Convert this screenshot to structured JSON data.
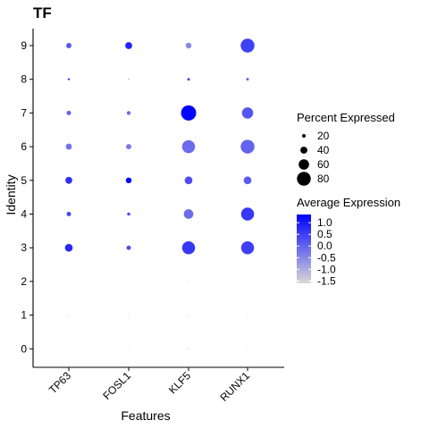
{
  "chart_data": {
    "type": "dotplot",
    "title": "TF",
    "xlabel": "Features",
    "ylabel": "Identity",
    "features": [
      "TP63",
      "FOSL1",
      "KLF5",
      "RUNX1"
    ],
    "identities": [
      "0",
      "1",
      "2",
      "3",
      "4",
      "5",
      "6",
      "7",
      "8",
      "9"
    ],
    "points": [
      {
        "identity": "9",
        "feature": "TP63",
        "pct": 30,
        "avg": 0.2
      },
      {
        "identity": "9",
        "feature": "FOSL1",
        "pct": 40,
        "avg": 0.9
      },
      {
        "identity": "9",
        "feature": "KLF5",
        "pct": 33,
        "avg": -0.5
      },
      {
        "identity": "9",
        "feature": "RUNX1",
        "pct": 80,
        "avg": 0.5
      },
      {
        "identity": "8",
        "feature": "TP63",
        "pct": 10,
        "avg": 1.2
      },
      {
        "identity": "8",
        "feature": "FOSL1",
        "pct": 5,
        "avg": 0.2
      },
      {
        "identity": "8",
        "feature": "KLF5",
        "pct": 15,
        "avg": 0.4
      },
      {
        "identity": "8",
        "feature": "RUNX1",
        "pct": 15,
        "avg": 0.1
      },
      {
        "identity": "7",
        "feature": "TP63",
        "pct": 25,
        "avg": 0.0
      },
      {
        "identity": "7",
        "feature": "FOSL1",
        "pct": 22,
        "avg": -0.1
      },
      {
        "identity": "7",
        "feature": "KLF5",
        "pct": 88,
        "avg": 1.3
      },
      {
        "identity": "7",
        "feature": "RUNX1",
        "pct": 65,
        "avg": 0.2
      },
      {
        "identity": "6",
        "feature": "TP63",
        "pct": 35,
        "avg": -0.2
      },
      {
        "identity": "6",
        "feature": "FOSL1",
        "pct": 30,
        "avg": -0.3
      },
      {
        "identity": "6",
        "feature": "KLF5",
        "pct": 75,
        "avg": -0.1
      },
      {
        "identity": "6",
        "feature": "RUNX1",
        "pct": 80,
        "avg": 0.0
      },
      {
        "identity": "5",
        "feature": "TP63",
        "pct": 40,
        "avg": 0.7
      },
      {
        "identity": "5",
        "feature": "FOSL1",
        "pct": 33,
        "avg": 1.3
      },
      {
        "identity": "5",
        "feature": "KLF5",
        "pct": 45,
        "avg": 0.3
      },
      {
        "identity": "5",
        "feature": "RUNX1",
        "pct": 45,
        "avg": 0.1
      },
      {
        "identity": "4",
        "feature": "TP63",
        "pct": 25,
        "avg": 0.4
      },
      {
        "identity": "4",
        "feature": "FOSL1",
        "pct": 18,
        "avg": 0.3
      },
      {
        "identity": "4",
        "feature": "KLF5",
        "pct": 55,
        "avg": -0.1
      },
      {
        "identity": "4",
        "feature": "RUNX1",
        "pct": 75,
        "avg": 0.6
      },
      {
        "identity": "3",
        "feature": "TP63",
        "pct": 45,
        "avg": 0.8
      },
      {
        "identity": "3",
        "feature": "FOSL1",
        "pct": 25,
        "avg": 0.3
      },
      {
        "identity": "3",
        "feature": "KLF5",
        "pct": 75,
        "avg": 0.6
      },
      {
        "identity": "3",
        "feature": "RUNX1",
        "pct": 75,
        "avg": 0.5
      },
      {
        "identity": "2",
        "feature": "TP63",
        "pct": 1,
        "avg": -1.5
      },
      {
        "identity": "2",
        "feature": "FOSL1",
        "pct": 1,
        "avg": -1.5
      },
      {
        "identity": "2",
        "feature": "KLF5",
        "pct": 2,
        "avg": -1.4
      },
      {
        "identity": "2",
        "feature": "RUNX1",
        "pct": 1,
        "avg": -1.5
      },
      {
        "identity": "1",
        "feature": "TP63",
        "pct": 1,
        "avg": -1.5
      },
      {
        "identity": "1",
        "feature": "FOSL1",
        "pct": 1,
        "avg": -1.5
      },
      {
        "identity": "1",
        "feature": "KLF5",
        "pct": 2,
        "avg": -1.3
      },
      {
        "identity": "1",
        "feature": "RUNX1",
        "pct": 1,
        "avg": -1.5
      },
      {
        "identity": "0",
        "feature": "TP63",
        "pct": 1,
        "avg": -1.5
      },
      {
        "identity": "0",
        "feature": "FOSL1",
        "pct": 1,
        "avg": -1.5
      },
      {
        "identity": "0",
        "feature": "KLF5",
        "pct": 3,
        "avg": -1.0
      },
      {
        "identity": "0",
        "feature": "RUNX1",
        "pct": 1,
        "avg": -1.5
      }
    ],
    "size_legend": {
      "title": "Percent Expressed",
      "values": [
        20,
        40,
        60,
        80
      ]
    },
    "color_legend": {
      "title": "Average Expression",
      "ticks": [
        "1.0",
        "0.5",
        "0.0",
        "-0.5",
        "-1.0",
        "-1.5"
      ],
      "range": [
        -1.6,
        1.35
      ],
      "low_color": "#d9d9d9",
      "high_color": "#0000ff"
    },
    "legend_position": "right",
    "grid": false
  }
}
